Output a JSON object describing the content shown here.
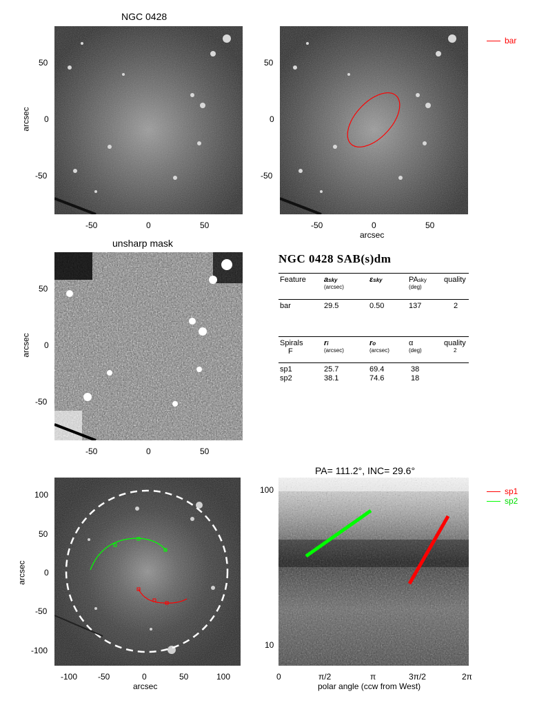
{
  "galaxy": "NGC 0428",
  "panels": {
    "top_left_title": "NGC 0428",
    "mid_left_title": "unsharp mask",
    "bottom_right_title": "PA= 111.2°, INC=  29.6°",
    "ylabel": "arcsec",
    "xlabel": "arcsec",
    "polar_xlabel": "polar angle (ccw from West)"
  },
  "ticks": {
    "img_x": [
      "-50",
      "0",
      "50"
    ],
    "img_y": [
      "50",
      "0",
      "-50"
    ],
    "img_big_x": [
      "-100",
      "-50",
      "0",
      "50",
      "100"
    ],
    "img_big_y": [
      "100",
      "50",
      "0",
      "-50",
      "-100"
    ],
    "polar_x": [
      "0",
      "π/2",
      "π",
      "3π/2",
      "2π"
    ],
    "polar_y": [
      "100",
      "10"
    ]
  },
  "legend": {
    "bar": "bar",
    "sp1": "sp1",
    "sp2": "sp2"
  },
  "colors": {
    "bar": "#ff0000",
    "sp1": "#ff0000",
    "sp2": "#00ff00"
  },
  "table": {
    "heading": "NGC 0428  SAB(s)dm",
    "bar_header": {
      "feature": "Feature",
      "a": "a",
      "a_sub": "sky",
      "a_unit": "(arcsec)",
      "e": "ε",
      "e_sub": "sky",
      "pa": "PA",
      "pa_sub": "sky",
      "pa_unit": "(deg)",
      "quality": "quality"
    },
    "bar_row": {
      "name": "bar",
      "a": "29.5",
      "e": "0.50",
      "pa": "137",
      "quality": "2"
    },
    "spiral_header": {
      "feature": "Spirals",
      "feature2": "F",
      "ri": "r",
      "ri_sub": "i",
      "ri_unit": "(arcsec)",
      "ro": "r",
      "ro_sub": "o",
      "ro_unit": "(arcsec)",
      "alpha": "α",
      "alpha_unit": "(deg)",
      "quality": "quality",
      "quality2": "2"
    },
    "spiral_rows": [
      {
        "name": "sp1",
        "ri": "25.7",
        "ro": "69.4",
        "alpha": "38"
      },
      {
        "name": "sp2",
        "ri": "38.1",
        "ro": "74.6",
        "alpha": "18"
      }
    ]
  }
}
